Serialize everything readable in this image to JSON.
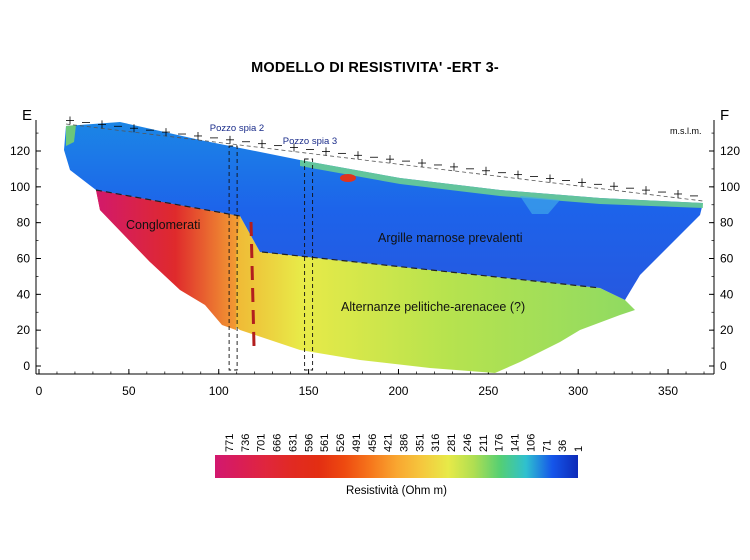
{
  "title": "MODELLO DI RESISTIVITA' -ERT 3-",
  "left_endpoint": "E",
  "right_endpoint": "F",
  "unit_label": "m.s.l.m.",
  "x_axis": {
    "range": [
      0,
      375
    ],
    "ticks": [
      "0",
      "50",
      "100",
      "150",
      "200",
      "250",
      "300",
      "350"
    ]
  },
  "y_axis": {
    "range": [
      -5,
      140
    ],
    "ticks": [
      "0",
      "20",
      "40",
      "60",
      "80",
      "100",
      "120"
    ]
  },
  "wells": [
    {
      "label": "Pozzo spia 2",
      "x": 108
    },
    {
      "label": "Pozzo spia 3",
      "x": 150
    }
  ],
  "units": [
    {
      "label": "Conglomerati"
    },
    {
      "label": "Argille marnose prevalenti"
    },
    {
      "label": "Alternanze pelitiche-arenacee (?)"
    }
  ],
  "colorbar": {
    "label": "Resistività (Ohm m)",
    "values": [
      "771",
      "736",
      "701",
      "666",
      "631",
      "596",
      "561",
      "526",
      "491",
      "456",
      "421",
      "386",
      "351",
      "316",
      "281",
      "246",
      "211",
      "176",
      "141",
      "106",
      "71",
      "36",
      "1"
    ],
    "colors": [
      "#d2186f",
      "#da1e56",
      "#e0263c",
      "#e12a22",
      "#e32e12",
      "#ee4a10",
      "#f6771c",
      "#f9a630",
      "#f5c83e",
      "#e7ea48",
      "#aede52",
      "#54cf74",
      "#2fc0cf",
      "#1556ea",
      "#0d2ab8"
    ]
  }
}
